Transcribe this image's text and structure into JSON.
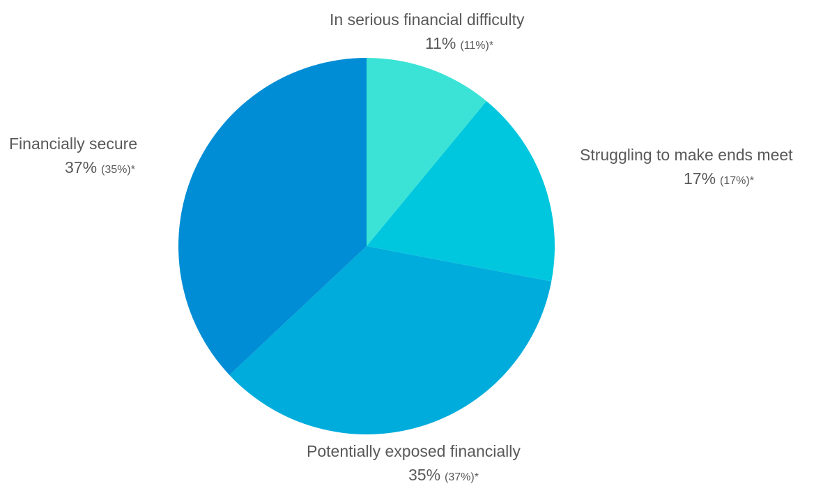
{
  "chart_data": {
    "type": "pie",
    "title": "",
    "categories": [
      "In serious financial difficulty",
      "Struggling to make ends meet",
      "Potentially exposed financially",
      "Financially secure"
    ],
    "values": [
      11,
      17,
      35,
      37
    ],
    "unit": "%",
    "slices": [
      {
        "label": "In serious financial difficulty",
        "value": 11,
        "value_text": "11%",
        "previous_text": "(11%)*",
        "color": "#3be3d6"
      },
      {
        "label": "Struggling to make ends meet",
        "value": 17,
        "value_text": "17%",
        "previous_text": "(17%)*",
        "color": "#00c7de"
      },
      {
        "label": "Potentially exposed financially",
        "value": 35,
        "value_text": "35%",
        "previous_text": "(37%)*",
        "color": "#00acdc"
      },
      {
        "label": "Financially secure",
        "value": 37,
        "value_text": "37%",
        "previous_text": "(35%)*",
        "color": "#008dd5"
      }
    ],
    "start_angle_deg": 0,
    "direction": "clockwise",
    "legend": "none",
    "grid": false
  }
}
